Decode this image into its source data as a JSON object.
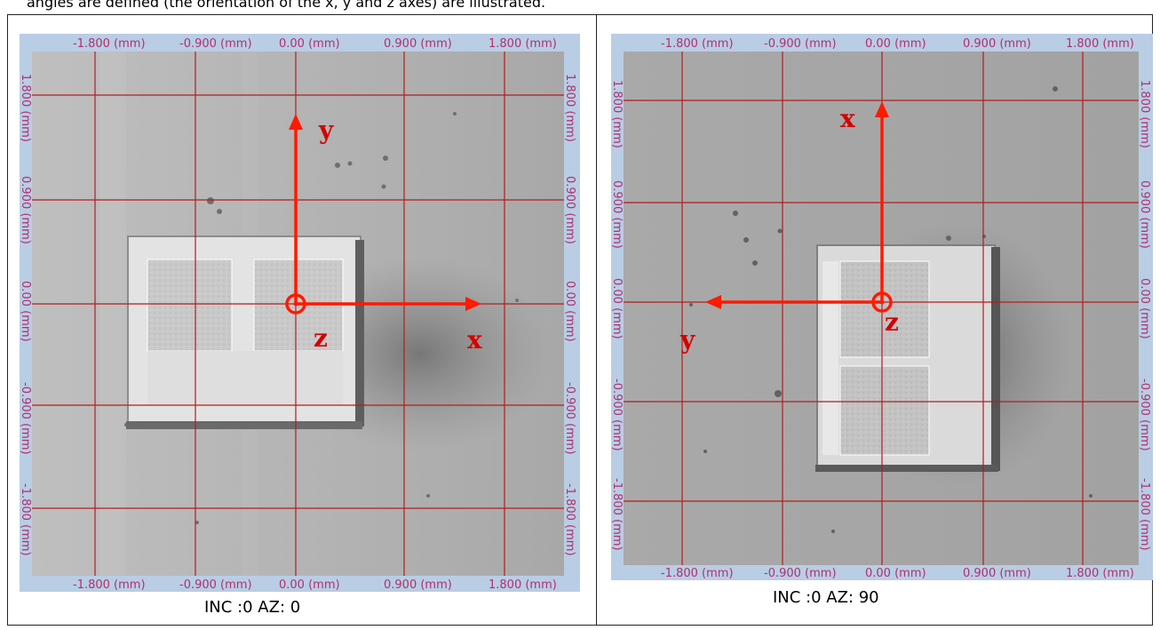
{
  "top_text": "angles are defined (the orientation of the x, y and z axes) are illustrated.",
  "panels": [
    {
      "caption": "INC :0 AZ: 0",
      "top_ticks": [
        "-1.800 (mm)",
        "-0.900 (mm)",
        "0.00 (mm)",
        "0.900 (mm)",
        "1.800 (mm)"
      ],
      "bottom_ticks": [
        "-1.800 (mm)",
        "-0.900 (mm)",
        "0.00 (mm)",
        "0.900 (mm)",
        "1.800 (mm)"
      ],
      "left_ticks": [
        "1.800 (mm)",
        "0.900 (mm)",
        "0.00 (mm)",
        "-0.900 (mm)",
        "-1.800 (mm)"
      ],
      "right_ticks": [
        "1.800 (mm)",
        "0.900 (mm)",
        "0.00 (mm)",
        "-0.900 (mm)",
        "-1.800 (mm)"
      ],
      "axis_labels": {
        "up": "y",
        "side": "x",
        "origin": "z"
      }
    },
    {
      "caption": "INC :0 AZ: 90",
      "top_ticks": [
        "-1.800 (mm)",
        "-0.900 (mm)",
        "0.00 (mm)",
        "0.900 (mm)",
        "1.800 (mm)"
      ],
      "bottom_ticks": [
        "-1.800 (mm)",
        "-0.900 (mm)",
        "0.00 (mm)",
        "0.900 (mm)",
        "1.800 (mm)"
      ],
      "left_ticks": [
        "1.800 (mm)",
        "0.900 (mm)",
        "0.00 (mm)",
        "-0.900 (mm)",
        "-1.800 (mm)"
      ],
      "right_ticks": [
        "1.800 (mm)",
        "0.900 (mm)",
        "0.00 (mm)",
        "-0.900 (mm)",
        "-1.800 (mm)"
      ],
      "axis_labels": {
        "up": "x",
        "side": "y",
        "origin": "z"
      }
    }
  ],
  "colors": {
    "grid": "#b51c1c",
    "tick_text": "#b0306a",
    "axis_arrow": "#ff1a00",
    "axis_label": "#d40000",
    "border_blue": "#b9cde5"
  }
}
